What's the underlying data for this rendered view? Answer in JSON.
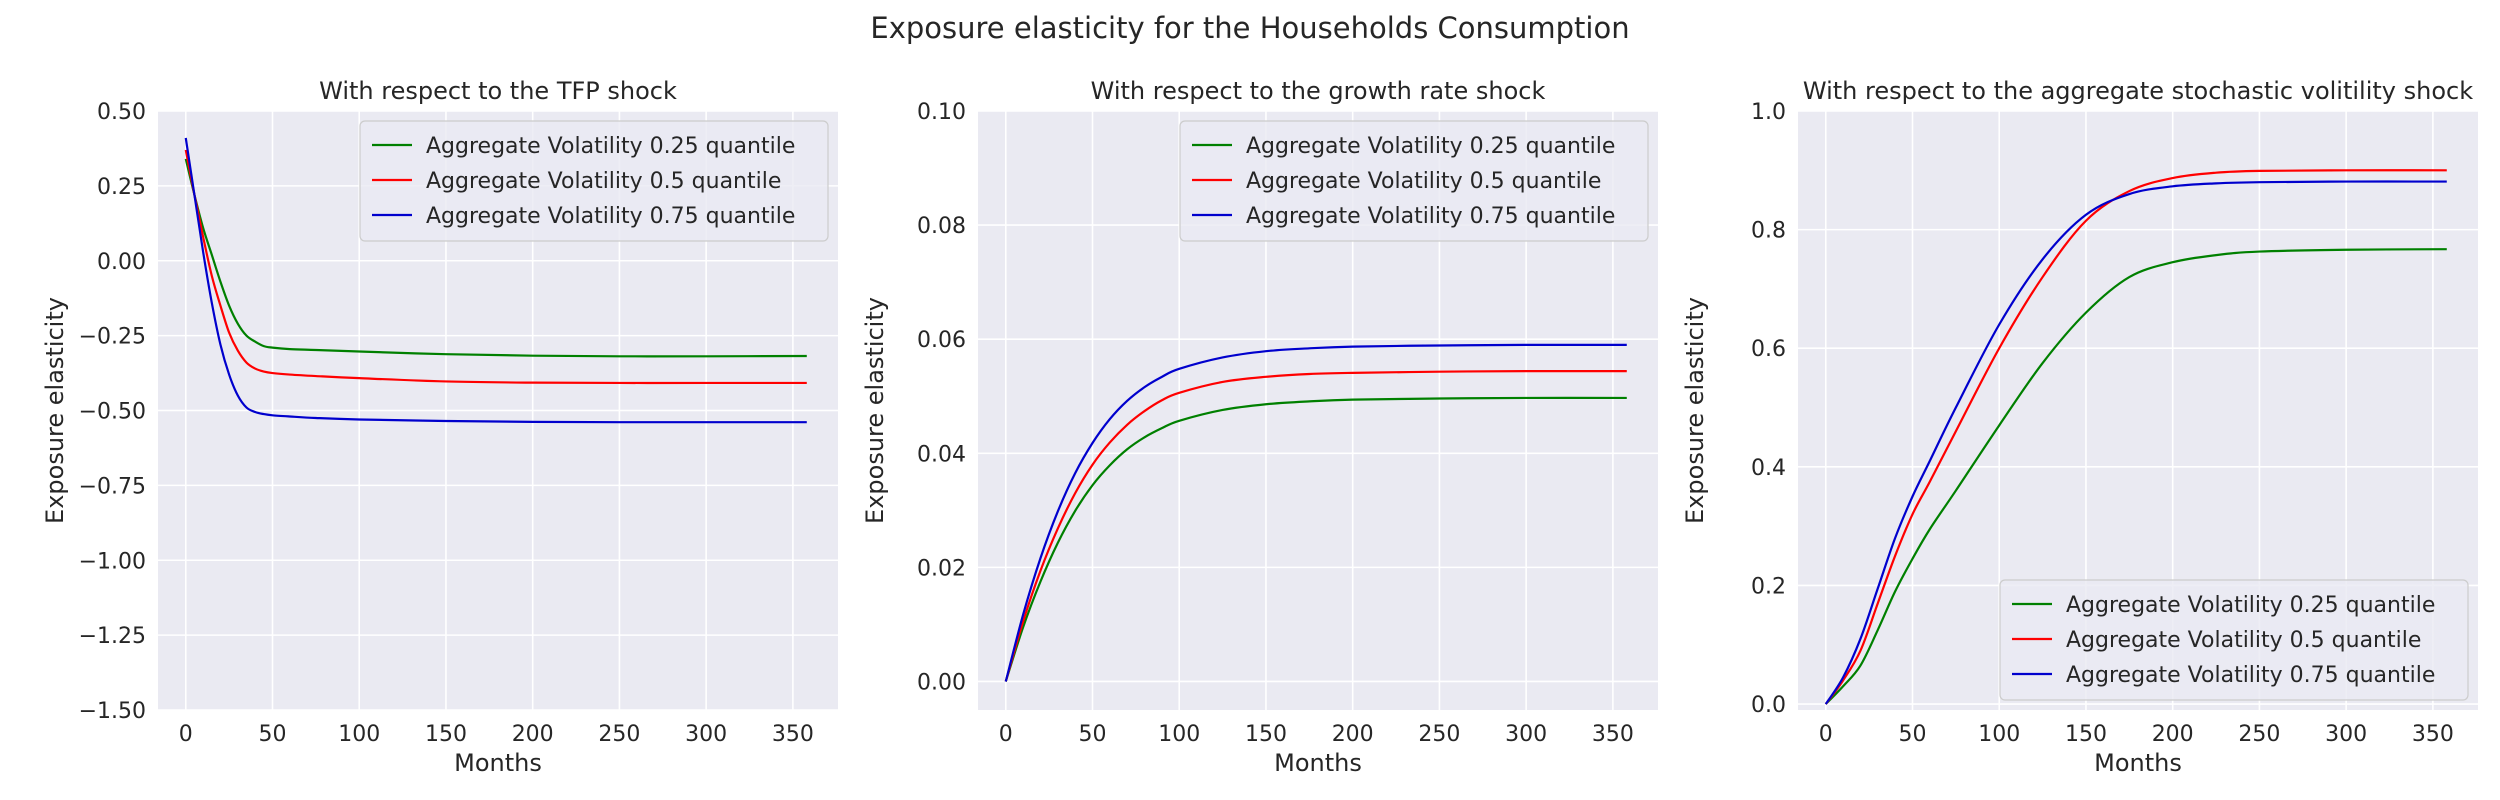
{
  "figure": {
    "title": "Exposure elasticity for the Households Consumption"
  },
  "colors": {
    "plot_background": "#eaeaf2",
    "grid": "#ffffff",
    "series_025": "#008000",
    "series_05": "#ff0000",
    "series_075": "#0000cd"
  },
  "chart_data": [
    {
      "type": "line",
      "title": "With respect to the TFP shock",
      "xlabel": "Months",
      "ylabel": "Exposure elasticity",
      "xlim": [
        -16,
        376
      ],
      "ylim": [
        -1.5,
        0.5
      ],
      "xticks": [
        0,
        50,
        100,
        150,
        200,
        250,
        300,
        350
      ],
      "xtick_labels": [
        "0",
        "50",
        "100",
        "150",
        "200",
        "250",
        "300",
        "350"
      ],
      "yticks": [
        -1.5,
        -1.25,
        -1.0,
        -0.75,
        -0.5,
        -0.25,
        0.0,
        0.25,
        0.5
      ],
      "ytick_labels": [
        "−1.50",
        "−1.25",
        "−1.00",
        "−0.75",
        "−0.50",
        "−0.25",
        "0.00",
        "0.25",
        "0.50"
      ],
      "grid": true,
      "legend": "upper right",
      "series": [
        {
          "name": "Aggregate Volatility 0.25 quantile",
          "color": "#008000",
          "x": [
            0,
            5,
            10,
            15,
            20,
            25,
            30,
            35,
            40,
            45,
            50,
            60,
            75,
            100,
            150,
            200,
            250,
            300,
            358
          ],
          "y": [
            0.34,
            0.22,
            0.11,
            0.02,
            -0.07,
            -0.15,
            -0.21,
            -0.25,
            -0.27,
            -0.285,
            -0.29,
            -0.295,
            -0.298,
            -0.303,
            -0.312,
            -0.317,
            -0.319,
            -0.319,
            -0.318
          ]
        },
        {
          "name": "Aggregate Volatility 0.5 quantile",
          "color": "#ff0000",
          "x": [
            0,
            5,
            10,
            15,
            20,
            25,
            30,
            35,
            40,
            45,
            50,
            60,
            75,
            100,
            150,
            200,
            250,
            300,
            358
          ],
          "y": [
            0.37,
            0.22,
            0.08,
            -0.05,
            -0.15,
            -0.24,
            -0.3,
            -0.34,
            -0.36,
            -0.37,
            -0.375,
            -0.38,
            -0.385,
            -0.392,
            -0.403,
            -0.407,
            -0.408,
            -0.408,
            -0.408
          ]
        },
        {
          "name": "Aggregate Volatility 0.75 quantile",
          "color": "#0000cd",
          "x": [
            0,
            5,
            10,
            15,
            20,
            25,
            30,
            35,
            40,
            45,
            50,
            60,
            75,
            100,
            150,
            200,
            250,
            300,
            358
          ],
          "y": [
            0.41,
            0.22,
            0.03,
            -0.14,
            -0.28,
            -0.38,
            -0.45,
            -0.49,
            -0.505,
            -0.512,
            -0.516,
            -0.52,
            -0.525,
            -0.53,
            -0.535,
            -0.538,
            -0.539,
            -0.539,
            -0.539
          ]
        }
      ]
    },
    {
      "type": "line",
      "title": "With respect to the growth rate shock",
      "xlabel": "Months",
      "ylabel": "Exposure elasticity",
      "xlim": [
        -16,
        376
      ],
      "ylim": [
        -0.005,
        0.1
      ],
      "xticks": [
        0,
        50,
        100,
        150,
        200,
        250,
        300,
        350
      ],
      "xtick_labels": [
        "0",
        "50",
        "100",
        "150",
        "200",
        "250",
        "300",
        "350"
      ],
      "yticks": [
        0.0,
        0.02,
        0.04,
        0.06,
        0.08,
        0.1
      ],
      "ytick_labels": [
        "0.00",
        "0.02",
        "0.04",
        "0.06",
        "0.08",
        "0.10"
      ],
      "grid": true,
      "legend": "upper right",
      "series": [
        {
          "name": "Aggregate Volatility 0.25 quantile",
          "color": "#008000",
          "x": [
            0,
            10,
            20,
            30,
            40,
            50,
            60,
            70,
            80,
            90,
            100,
            125,
            150,
            175,
            200,
            250,
            300,
            358
          ],
          "y": [
            0.0,
            0.0095,
            0.0175,
            0.0243,
            0.0299,
            0.0344,
            0.0379,
            0.0407,
            0.0428,
            0.0444,
            0.0457,
            0.0476,
            0.0486,
            0.0491,
            0.0494,
            0.0496,
            0.0497,
            0.0497
          ]
        },
        {
          "name": "Aggregate Volatility 0.5 quantile",
          "color": "#ff0000",
          "x": [
            0,
            10,
            20,
            30,
            40,
            50,
            60,
            70,
            80,
            90,
            100,
            125,
            150,
            175,
            200,
            250,
            300,
            358
          ],
          "y": [
            0.0,
            0.0105,
            0.0194,
            0.0268,
            0.033,
            0.038,
            0.0419,
            0.045,
            0.0474,
            0.0493,
            0.0506,
            0.0525,
            0.0534,
            0.0539,
            0.0541,
            0.0543,
            0.0544,
            0.0544
          ]
        },
        {
          "name": "Aggregate Volatility 0.75 quantile",
          "color": "#0000cd",
          "x": [
            0,
            10,
            20,
            30,
            40,
            50,
            60,
            70,
            80,
            90,
            100,
            125,
            150,
            175,
            200,
            250,
            300,
            358
          ],
          "y": [
            0.0,
            0.0117,
            0.0216,
            0.0298,
            0.0365,
            0.0418,
            0.046,
            0.0492,
            0.0516,
            0.0534,
            0.0548,
            0.0568,
            0.0579,
            0.0584,
            0.0587,
            0.0589,
            0.059,
            0.059
          ]
        }
      ]
    },
    {
      "type": "line",
      "title": "With respect to the aggregate stochastic volitility shock",
      "xlabel": "Months",
      "ylabel": "Exposure elasticity",
      "xlim": [
        -16,
        376
      ],
      "ylim": [
        -0.01,
        1.0
      ],
      "xticks": [
        0,
        50,
        100,
        150,
        200,
        250,
        300,
        350
      ],
      "xtick_labels": [
        "0",
        "50",
        "100",
        "150",
        "200",
        "250",
        "300",
        "350"
      ],
      "yticks": [
        0.0,
        0.2,
        0.4,
        0.6,
        0.8,
        1.0
      ],
      "ytick_labels": [
        "0.0",
        "0.2",
        "0.4",
        "0.6",
        "0.8",
        "1.0"
      ],
      "grid": true,
      "legend": "lower right",
      "series": [
        {
          "name": "Aggregate Volatility 0.25 quantile",
          "color": "#008000",
          "x": [
            0,
            10,
            20,
            30,
            40,
            50,
            60,
            75,
            100,
            125,
            150,
            175,
            200,
            225,
            250,
            300,
            358
          ],
          "y": [
            0.0,
            0.03,
            0.065,
            0.125,
            0.19,
            0.245,
            0.295,
            0.36,
            0.47,
            0.575,
            0.66,
            0.72,
            0.745,
            0.757,
            0.763,
            0.766,
            0.767
          ]
        },
        {
          "name": "Aggregate Volatility 0.5 quantile",
          "color": "#ff0000",
          "x": [
            0,
            10,
            20,
            30,
            40,
            50,
            60,
            75,
            100,
            125,
            150,
            175,
            200,
            225,
            250,
            300,
            358
          ],
          "y": [
            0.0,
            0.04,
            0.09,
            0.17,
            0.25,
            0.32,
            0.375,
            0.46,
            0.6,
            0.72,
            0.815,
            0.865,
            0.887,
            0.896,
            0.899,
            0.9,
            0.9
          ]
        },
        {
          "name": "Aggregate Volatility 0.75 quantile",
          "color": "#0000cd",
          "x": [
            0,
            10,
            20,
            30,
            40,
            50,
            60,
            75,
            100,
            125,
            150,
            175,
            200,
            225,
            250,
            300,
            358
          ],
          "y": [
            0.0,
            0.045,
            0.11,
            0.195,
            0.28,
            0.35,
            0.41,
            0.5,
            0.64,
            0.75,
            0.825,
            0.86,
            0.873,
            0.878,
            0.88,
            0.881,
            0.881
          ]
        }
      ]
    }
  ]
}
